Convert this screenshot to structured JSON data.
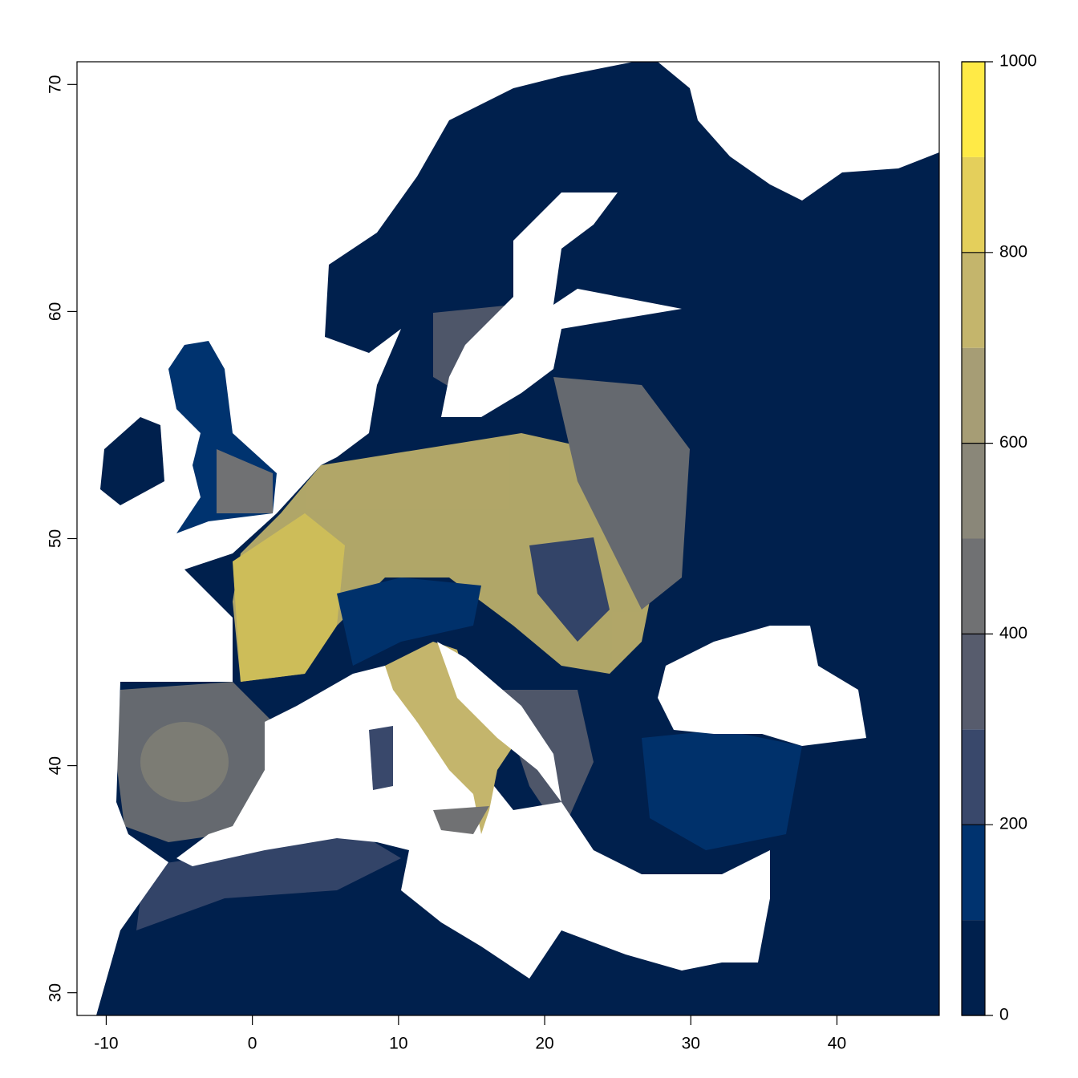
{
  "chart_data": {
    "type": "raster",
    "xlim": [
      -12,
      47
    ],
    "xticks": [
      -10,
      0,
      10,
      20,
      30,
      40
    ],
    "ylim": [
      29,
      71
    ],
    "yticks": [
      30,
      40,
      50,
      60,
      70
    ],
    "zlim": [
      0,
      1000
    ],
    "breaks": [
      0,
      100,
      200,
      300,
      400,
      500,
      600,
      700,
      800,
      900,
      1000
    ],
    "colors": [
      "#00204D",
      "#00336F",
      "#39486B",
      "#575C6D",
      "#707173",
      "#8A8779",
      "#A69D75",
      "#C4B56C",
      "#E4CF5B",
      "#FFEA46"
    ],
    "zticks": [
      0,
      200,
      400,
      600,
      800,
      1000
    ]
  }
}
